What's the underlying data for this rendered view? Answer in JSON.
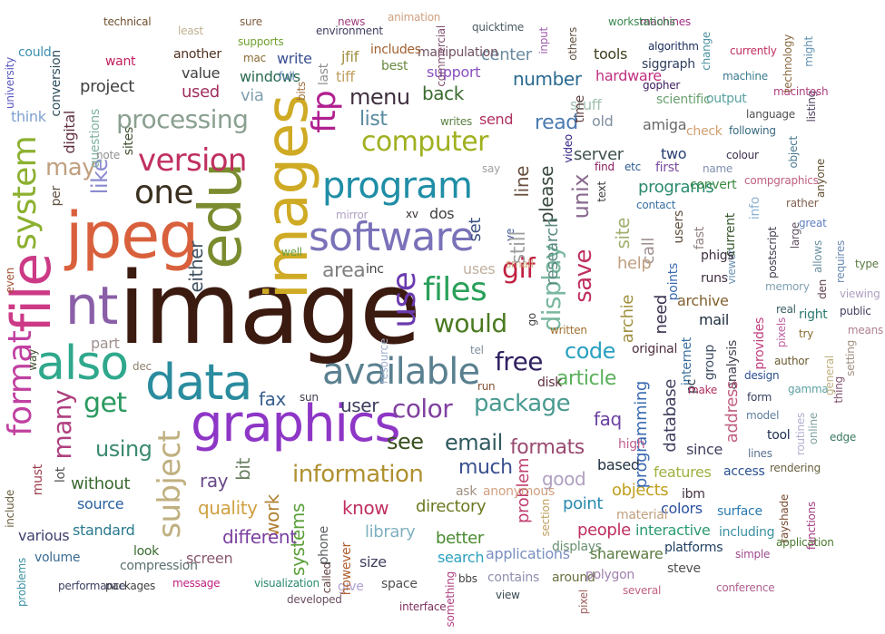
{
  "words": [
    {
      "text": "image",
      "color": "#3b1a10"
    },
    {
      "text": "jpeg",
      "color": "#d9603c"
    },
    {
      "text": "file",
      "color": "#cc3a86"
    },
    {
      "text": "images",
      "color": "#cfaa24"
    },
    {
      "text": "edu",
      "color": "#7a8c2f"
    },
    {
      "text": "graphics",
      "color": "#8e36c6"
    },
    {
      "text": "software",
      "color": "#7a72b8"
    },
    {
      "text": "data",
      "color": "#2a8c9e"
    },
    {
      "text": "nt",
      "color": "#8a5fa8"
    },
    {
      "text": "also",
      "color": "#2fa88c"
    },
    {
      "text": "available",
      "color": "#5a8090"
    },
    {
      "text": "program",
      "color": "#1f8ea6"
    },
    {
      "text": "one",
      "color": "#3a3020"
    },
    {
      "text": "version",
      "color": "#c03060"
    },
    {
      "text": "format",
      "color": "#c040a0"
    },
    {
      "text": "system",
      "color": "#8cb030"
    },
    {
      "text": "files",
      "color": "#2aa05a"
    },
    {
      "text": "use",
      "color": "#6a3ab0"
    },
    {
      "text": "computer",
      "color": "#a0b020"
    },
    {
      "text": "ftp",
      "color": "#b02090"
    },
    {
      "text": "processing",
      "color": "#8aa090"
    },
    {
      "text": "would",
      "color": "#4a7a20"
    },
    {
      "text": "get",
      "color": "#2a9a60"
    },
    {
      "text": "color",
      "color": "#8040a0"
    },
    {
      "text": "package",
      "color": "#4a9a90"
    },
    {
      "text": "information",
      "color": "#b09030"
    },
    {
      "text": "gif",
      "color": "#c02040"
    },
    {
      "text": "display",
      "color": "#7ab8a0"
    },
    {
      "text": "subject",
      "color": "#c0b080"
    },
    {
      "text": "many",
      "color": "#b04080"
    },
    {
      "text": "may",
      "color": "#c0a080"
    },
    {
      "text": "like",
      "color": "#8a8ad0"
    },
    {
      "text": "see",
      "color": "#3a5020"
    },
    {
      "text": "email",
      "color": "#305a60"
    },
    {
      "text": "free",
      "color": "#302060"
    },
    {
      "text": "formats",
      "color": "#9a4a70"
    },
    {
      "text": "code",
      "color": "#2aa0c0"
    },
    {
      "text": "article",
      "color": "#5ab05a"
    },
    {
      "text": "much",
      "color": "#3a5090"
    },
    {
      "text": "using",
      "color": "#3a8a70"
    },
    {
      "text": "fax",
      "color": "#3a6090"
    },
    {
      "text": "user",
      "color": "#404060"
    },
    {
      "text": "know",
      "color": "#c03060"
    },
    {
      "text": "directory",
      "color": "#6a7a20"
    },
    {
      "text": "systems",
      "color": "#5aa03a"
    },
    {
      "text": "work",
      "color": "#b08030"
    },
    {
      "text": "bit",
      "color": "#6a8060"
    },
    {
      "text": "ray",
      "color": "#6a4a8a"
    },
    {
      "text": "quality",
      "color": "#d0a040"
    },
    {
      "text": "different",
      "color": "#7a40a0"
    },
    {
      "text": "without",
      "color": "#3a6a30"
    },
    {
      "text": "source",
      "color": "#2a60a0"
    },
    {
      "text": "standard",
      "color": "#2a7a90"
    },
    {
      "text": "library",
      "color": "#80b0c0"
    },
    {
      "text": "better",
      "color": "#4a8a30"
    },
    {
      "text": "search",
      "color": "#2aa0c0"
    },
    {
      "text": "applications",
      "color": "#7a90c0"
    },
    {
      "text": "problem",
      "color": "#c04070"
    },
    {
      "text": "good",
      "color": "#b0a0c0"
    },
    {
      "text": "point",
      "color": "#2a8ab0"
    },
    {
      "text": "people",
      "color": "#c03060"
    },
    {
      "text": "shareware",
      "color": "#5a7a40"
    },
    {
      "text": "interactive",
      "color": "#2a9a70"
    },
    {
      "text": "based",
      "color": "#203040"
    },
    {
      "text": "objects",
      "color": "#c0a020"
    },
    {
      "text": "colors",
      "color": "#2a50a0"
    },
    {
      "text": "features",
      "color": "#a0b040"
    },
    {
      "text": "access",
      "color": "#2a5090"
    },
    {
      "text": "platforms",
      "color": "#204060"
    },
    {
      "text": "surface",
      "color": "#2a7ab0"
    },
    {
      "text": "including",
      "color": "#3a90a0"
    },
    {
      "text": "simple",
      "color": "#a04a90"
    },
    {
      "text": "application",
      "color": "#4a7a30"
    },
    {
      "text": "rendering",
      "color": "#6a6040"
    },
    {
      "text": "rayshade",
      "color": "#7a4a30"
    },
    {
      "text": "functions",
      "color": "#a03a80"
    },
    {
      "text": "edge",
      "color": "#3a7a60"
    },
    {
      "text": "online",
      "color": "#80a0a0"
    },
    {
      "text": "routines",
      "color": "#b0b0d0"
    },
    {
      "text": "tool",
      "color": "#203050"
    },
    {
      "text": "lines",
      "color": "#5a7090"
    },
    {
      "text": "gamma",
      "color": "#60a0a0"
    },
    {
      "text": "model",
      "color": "#6080a0"
    },
    {
      "text": "form",
      "color": "#3a4060"
    },
    {
      "text": "design",
      "color": "#2a5090"
    },
    {
      "text": "author",
      "color": "#6a5a30"
    },
    {
      "text": "general",
      "color": "#c0b080"
    },
    {
      "text": "pixels",
      "color": "#c060a0"
    },
    {
      "text": "try",
      "color": "#8a6a30"
    },
    {
      "text": "right",
      "color": "#2a7a70"
    },
    {
      "text": "real",
      "color": "#3a6060"
    },
    {
      "text": "provides",
      "color": "#c04080"
    },
    {
      "text": "memory",
      "color": "#80a0b0"
    },
    {
      "text": "viewer",
      "color": "#6a90b0"
    },
    {
      "text": "postscript",
      "color": "#404050"
    },
    {
      "text": "large",
      "color": "#605060"
    },
    {
      "text": "allows",
      "color": "#6a90a0"
    },
    {
      "text": "requires",
      "color": "#6a8ab0"
    },
    {
      "text": "type",
      "color": "#5a7a40"
    },
    {
      "text": "viewing",
      "color": "#b0a0c0"
    },
    {
      "text": "public",
      "color": "#404060"
    },
    {
      "text": "means",
      "color": "#b08090"
    },
    {
      "text": "setting",
      "color": "#a09080"
    },
    {
      "text": "thing",
      "color": "#805070"
    },
    {
      "text": "den",
      "color": "#604050"
    },
    {
      "text": "great",
      "color": "#6080c0"
    },
    {
      "text": "rather",
      "color": "#806050"
    },
    {
      "text": "anyone",
      "color": "#605030"
    },
    {
      "text": "object",
      "color": "#4a7a90"
    },
    {
      "text": "compgraphics",
      "color": "#c06080"
    },
    {
      "text": "colour",
      "color": "#403050"
    },
    {
      "text": "following",
      "color": "#3a6a80"
    },
    {
      "text": "language",
      "color": "#505050"
    },
    {
      "text": "listing",
      "color": "#504060"
    },
    {
      "text": "macintosh",
      "color": "#b04080"
    },
    {
      "text": "might",
      "color": "#6090b0"
    },
    {
      "text": "technology",
      "color": "#8a6a40"
    },
    {
      "text": "currently",
      "color": "#c03060"
    },
    {
      "text": "machine",
      "color": "#3a7a90"
    },
    {
      "text": "change",
      "color": "#4a90a0"
    },
    {
      "text": "algorithm",
      "color": "#203060"
    },
    {
      "text": "machines",
      "color": "#a03080"
    },
    {
      "text": "workstations",
      "color": "#3a8a50"
    },
    {
      "text": "siggraph",
      "color": "#304060"
    },
    {
      "text": "gopher",
      "color": "#402060"
    },
    {
      "text": "scientific",
      "color": "#6aa070"
    },
    {
      "text": "output",
      "color": "#5aa0a0"
    },
    {
      "text": "check",
      "color": "#d0a070"
    },
    {
      "text": "amiga",
      "color": "#6a6a6a"
    },
    {
      "text": "stuff",
      "color": "#a0c0b0"
    },
    {
      "text": "hardware",
      "color": "#c03080"
    },
    {
      "text": "tools",
      "color": "#404020"
    },
    {
      "text": "back",
      "color": "#3a6a30"
    },
    {
      "text": "support",
      "color": "#8a50c0"
    },
    {
      "text": "center",
      "color": "#6a8aa0"
    },
    {
      "text": "quicktime",
      "color": "#4a5a60"
    },
    {
      "text": "manipulation",
      "color": "#705060"
    },
    {
      "text": "animation",
      "color": "#d0a080"
    },
    {
      "text": "commercial",
      "color": "#805070"
    },
    {
      "text": "others",
      "color": "#605040"
    },
    {
      "text": "input",
      "color": "#a060b0"
    },
    {
      "text": "news",
      "color": "#a04080"
    },
    {
      "text": "sure",
      "color": "#806040"
    },
    {
      "text": "least",
      "color": "#c0b090"
    },
    {
      "text": "technical",
      "color": "#705030"
    },
    {
      "text": "supports",
      "color": "#70a030"
    },
    {
      "text": "environment",
      "color": "#404060"
    },
    {
      "text": "includes",
      "color": "#a06030"
    },
    {
      "text": "jfif",
      "color": "#a09040"
    },
    {
      "text": "best",
      "color": "#6a8a40"
    },
    {
      "text": "tiff",
      "color": "#c0a060"
    },
    {
      "text": "write",
      "color": "#3a5090"
    },
    {
      "text": "mac",
      "color": "#8a6a30"
    },
    {
      "text": "another",
      "color": "#503020"
    },
    {
      "text": "value",
      "color": "#404040"
    },
    {
      "text": "windows",
      "color": "#2a6a50"
    },
    {
      "text": "full",
      "color": "#5a80b0"
    },
    {
      "text": "bits",
      "color": "#a07040"
    },
    {
      "text": "last",
      "color": "#909090"
    },
    {
      "text": "via",
      "color": "#80a0b0"
    },
    {
      "text": "used",
      "color": "#a03060"
    },
    {
      "text": "want",
      "color": "#c02060"
    },
    {
      "text": "could",
      "color": "#3a90b0"
    },
    {
      "text": "project",
      "color": "#404040"
    },
    {
      "text": "conversion",
      "color": "#305060"
    },
    {
      "text": "university",
      "color": "#5a5ac0"
    },
    {
      "text": "digital",
      "color": "#603040"
    },
    {
      "text": "questions",
      "color": "#80b0a0"
    },
    {
      "text": "think",
      "color": "#80a0d0"
    },
    {
      "text": "note",
      "color": "#909090"
    },
    {
      "text": "sites",
      "color": "#405030"
    },
    {
      "text": "per",
      "color": "#605040"
    },
    {
      "text": "even",
      "color": "#a05030"
    },
    {
      "text": "way",
      "color": "#405030"
    },
    {
      "text": "part",
      "color": "#a09090"
    },
    {
      "text": "dec",
      "color": "#908070"
    },
    {
      "text": "sun",
      "color": "#404050"
    },
    {
      "text": "must",
      "color": "#a04050"
    },
    {
      "text": "lot",
      "color": "#505050"
    },
    {
      "text": "include",
      "color": "#6a6040"
    },
    {
      "text": "various",
      "color": "#404070"
    },
    {
      "text": "volume",
      "color": "#3a6a90"
    },
    {
      "text": "look",
      "color": "#3a6a30"
    },
    {
      "text": "compression",
      "color": "#5a7070"
    },
    {
      "text": "screen",
      "color": "#8a5a70"
    },
    {
      "text": "message",
      "color": "#c02080"
    },
    {
      "text": "visualization",
      "color": "#2a8a70"
    },
    {
      "text": "developed",
      "color": "#6a5060"
    },
    {
      "text": "called",
      "color": "#604040"
    },
    {
      "text": "give",
      "color": "#b0a0d0"
    },
    {
      "text": "however",
      "color": "#b06030"
    },
    {
      "text": "phone",
      "color": "#5a6060"
    },
    {
      "text": "size",
      "color": "#404060"
    },
    {
      "text": "space",
      "color": "#505050"
    },
    {
      "text": "interface",
      "color": "#803060"
    },
    {
      "text": "something",
      "color": "#b04080"
    },
    {
      "text": "bbs",
      "color": "#404040"
    },
    {
      "text": "contains",
      "color": "#9090b0"
    },
    {
      "text": "view",
      "color": "#3a4a50"
    },
    {
      "text": "around",
      "color": "#6a7040"
    },
    {
      "text": "polygon",
      "color": "#a080b0"
    },
    {
      "text": "pixel",
      "color": "#a06060"
    },
    {
      "text": "several",
      "color": "#c06080"
    },
    {
      "text": "steve",
      "color": "#505050"
    },
    {
      "text": "conference",
      "color": "#b06090"
    },
    {
      "text": "packages",
      "color": "#404040"
    },
    {
      "text": "performance",
      "color": "#3a4060"
    },
    {
      "text": "problems",
      "color": "#3a90a0"
    },
    {
      "text": "displays",
      "color": "#6a9070"
    },
    {
      "text": "material",
      "color": "#c0a080"
    },
    {
      "text": "ibm",
      "color": "#403040"
    },
    {
      "text": "section",
      "color": "#c0a060"
    },
    {
      "text": "anonymous",
      "color": "#d0a080"
    },
    {
      "text": "ask",
      "color": "#a09080"
    },
    {
      "text": "disk",
      "color": "#603040"
    },
    {
      "text": "run",
      "color": "#805030"
    },
    {
      "text": "go",
      "color": "#404040"
    },
    {
      "text": "tel",
      "color": "#8090a0"
    },
    {
      "text": "resource",
      "color": "#a0b0d0"
    },
    {
      "text": "small",
      "color": "#d0b080"
    },
    {
      "text": "ve",
      "color": "#3a5090"
    },
    {
      "text": "uses",
      "color": "#c0b0a0"
    },
    {
      "text": "area",
      "color": "#808080"
    },
    {
      "text": "inc",
      "color": "#404040"
    },
    {
      "text": "well",
      "color": "#6aa040"
    },
    {
      "text": "xv",
      "color": "#3a3030"
    },
    {
      "text": "mirror",
      "color": "#b0a0c0"
    },
    {
      "text": "dos",
      "color": "#404040"
    },
    {
      "text": "say",
      "color": "#a0a0a0"
    },
    {
      "text": "set",
      "color": "#3a5080"
    },
    {
      "text": "still",
      "color": "#a0a0a0"
    },
    {
      "text": "line",
      "color": "#6a5040"
    },
    {
      "text": "send",
      "color": "#b03060"
    },
    {
      "text": "writes",
      "color": "#5a8040"
    },
    {
      "text": "list",
      "color": "#5a8aa0"
    },
    {
      "text": "menu",
      "color": "#403040"
    },
    {
      "text": "number",
      "color": "#2a6a90"
    },
    {
      "text": "read",
      "color": "#4a7ab0"
    },
    {
      "text": "please",
      "color": "#3a4a40"
    },
    {
      "text": "video",
      "color": "#302080"
    },
    {
      "text": "time",
      "color": "#604040"
    },
    {
      "text": "old",
      "color": "#8090a0"
    },
    {
      "text": "server",
      "color": "#405050"
    },
    {
      "text": "unix",
      "color": "#8a6a90"
    },
    {
      "text": "research",
      "color": "#5a8a80"
    },
    {
      "text": "find",
      "color": "#8a2060"
    },
    {
      "text": "etc",
      "color": "#2a5a90"
    },
    {
      "text": "text",
      "color": "#404040"
    },
    {
      "text": "save",
      "color": "#c03060"
    },
    {
      "text": "site",
      "color": "#a0b070"
    },
    {
      "text": "call",
      "color": "#a09090"
    },
    {
      "text": "programs",
      "color": "#2a8a70"
    },
    {
      "text": "contact",
      "color": "#3a70a0"
    },
    {
      "text": "two",
      "color": "#2a4070"
    },
    {
      "text": "first",
      "color": "#7a4aa0"
    },
    {
      "text": "name",
      "color": "#8090b0"
    },
    {
      "text": "convert",
      "color": "#3a8a40"
    },
    {
      "text": "users",
      "color": "#605040"
    },
    {
      "text": "fast",
      "color": "#908080"
    },
    {
      "text": "current",
      "color": "#3a5a30"
    },
    {
      "text": "info",
      "color": "#8ab0d0"
    },
    {
      "text": "points",
      "color": "#3a6ab0"
    },
    {
      "text": "phigs",
      "color": "#403040"
    },
    {
      "text": "runs",
      "color": "#403040"
    },
    {
      "text": "help",
      "color": "#c0a080"
    },
    {
      "text": "archie",
      "color": "#a09040"
    },
    {
      "text": "archive",
      "color": "#806030"
    },
    {
      "text": "mail",
      "color": "#203040"
    },
    {
      "text": "need",
      "color": "#3a3050"
    },
    {
      "text": "internet",
      "color": "#3a70a0"
    },
    {
      "text": "group",
      "color": "#3a4a60"
    },
    {
      "text": "analysis",
      "color": "#404050"
    },
    {
      "text": "original",
      "color": "#503040"
    },
    {
      "text": "programming",
      "color": "#3a6ab0"
    },
    {
      "text": "database",
      "color": "#404060"
    },
    {
      "text": "pc",
      "color": "#304050"
    },
    {
      "text": "make",
      "color": "#b03060"
    },
    {
      "text": "address",
      "color": "#c06080"
    },
    {
      "text": "since",
      "color": "#404060"
    },
    {
      "text": "high",
      "color": "#c06090"
    },
    {
      "text": "faq",
      "color": "#6a40a0"
    },
    {
      "text": "written",
      "color": "#a07030"
    },
    {
      "text": "either",
      "color": "#405060"
    },
    {
      "text": "sgi",
      "color": "#3a4080"
    },
    {
      "text": "box",
      "color": "#707070"
    },
    {
      "text": "new",
      "color": "#a04060"
    }
  ]
}
